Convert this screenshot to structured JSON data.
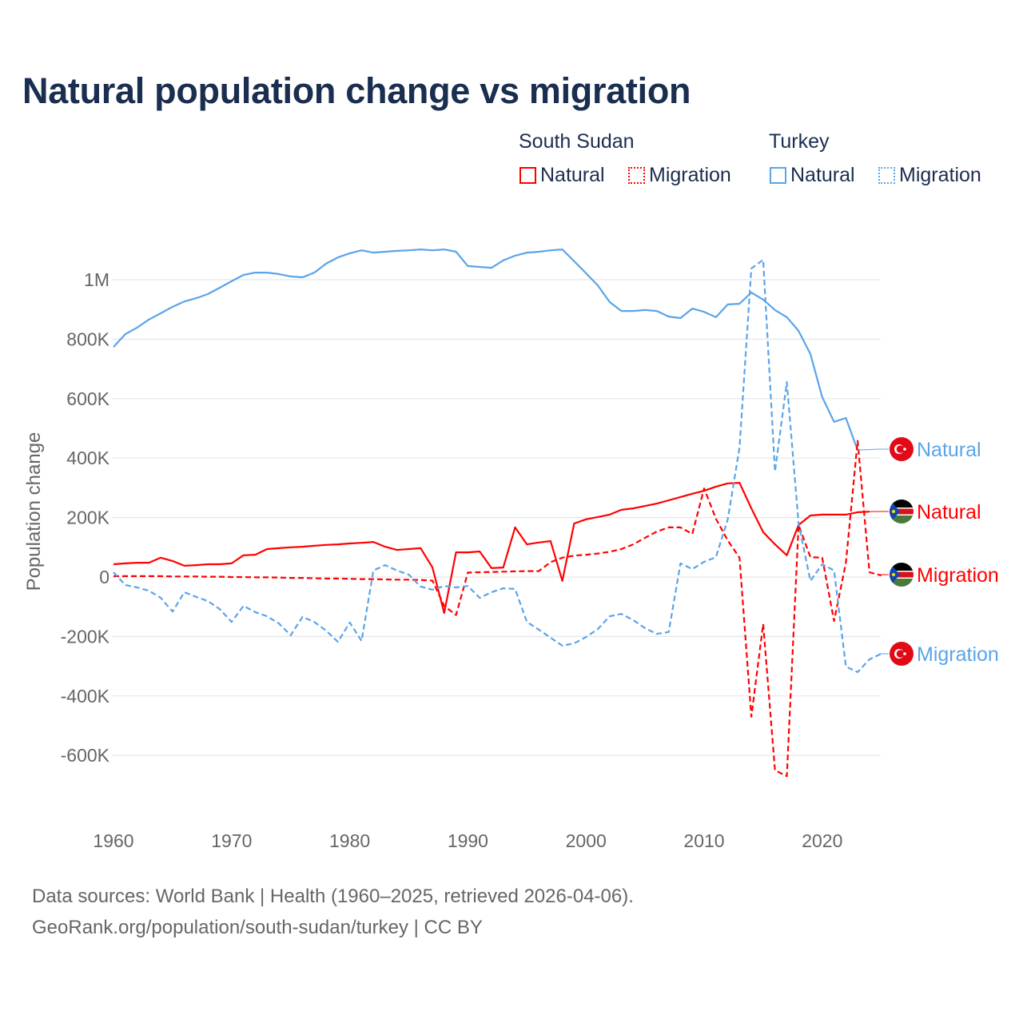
{
  "title": "Natural population change vs migration",
  "legend": {
    "groups": [
      {
        "name": "South Sudan",
        "items": [
          {
            "label": "Natural",
            "style": "solid"
          },
          {
            "label": "Migration",
            "style": "dotted"
          }
        ]
      },
      {
        "name": "Turkey",
        "items": [
          {
            "label": "Natural",
            "style": "solid"
          },
          {
            "label": "Migration",
            "style": "dotted"
          }
        ]
      }
    ]
  },
  "footer": {
    "line1": "Data sources: World Bank | Health (1960–2025, retrieved 2026-04-06).",
    "line2": "GeoRank.org/population/south-sudan/turkey | CC BY"
  },
  "colors": {
    "south_sudan": "#ff0000",
    "turkey": "#5ba4e8",
    "grid": "#e6e6e6",
    "tick": "#666666"
  },
  "chart_data": {
    "type": "line",
    "title": "Natural population change vs migration",
    "xlabel": "",
    "ylabel": "Population change",
    "xlim": [
      1960,
      2025
    ],
    "ylim": [
      -700000,
      1150000
    ],
    "xticks": [
      1960,
      1970,
      1980,
      1990,
      2000,
      2010,
      2020
    ],
    "xtick_labels": [
      "1960",
      "1970",
      "1980",
      "1990",
      "2000",
      "2010",
      "2020"
    ],
    "yticks": [
      -600000,
      -400000,
      -200000,
      0,
      200000,
      400000,
      600000,
      800000,
      1000000
    ],
    "ytick_labels": [
      "-600K",
      "-400K",
      "-200K",
      "0",
      "200K",
      "400K",
      "600K",
      "800K",
      "1M"
    ],
    "grid": true,
    "legend_position": "top-right",
    "series": [
      {
        "name": "Turkey Natural",
        "country": "Turkey",
        "label": "Natural",
        "color": "#5ba4e8",
        "dash": false,
        "flag": "turkey",
        "start": 1960,
        "values": [
          774,
          817,
          839,
          866,
          887,
          909,
          927,
          938,
          952,
          973,
          995,
          1016,
          1024,
          1024,
          1019,
          1011,
          1008,
          1024,
          1054,
          1075,
          1089,
          1099,
          1091,
          1094,
          1097,
          1099,
          1102,
          1099,
          1102,
          1094,
          1046,
          1043,
          1040,
          1065,
          1081,
          1091,
          1094,
          1099,
          1102,
          1062,
          1022,
          981,
          925,
          895,
          895,
          898,
          895,
          876,
          871,
          903,
          892,
          874,
          917,
          919,
          957,
          933,
          898,
          874,
          828,
          750,
          605,
          522,
          535,
          427
        ]
      },
      {
        "name": "South Sudan Natural",
        "country": "South Sudan",
        "label": "Natural",
        "color": "#ff0000",
        "dash": false,
        "flag": "south-sudan",
        "start": 1960,
        "values": [
          43,
          46,
          48,
          48,
          65,
          54,
          38,
          40,
          43,
          43,
          46,
          73,
          75,
          94,
          97,
          100,
          102,
          105,
          108,
          110,
          113,
          115,
          118,
          102,
          91,
          94,
          97,
          32,
          -121,
          83,
          83,
          86,
          30,
          32,
          167,
          110,
          116,
          121,
          -13,
          180,
          194,
          202,
          210,
          226,
          231,
          239,
          247,
          258,
          269,
          280,
          290,
          304,
          315,
          317,
          231,
          151,
          110,
          73,
          175,
          207,
          210,
          210,
          210,
          218,
          220
        ]
      },
      {
        "name": "South Sudan Migration",
        "country": "South Sudan",
        "label": "Migration",
        "color": "#ff0000",
        "dash": true,
        "flag": "south-sudan",
        "start": 1960,
        "values": [
          3,
          3,
          3,
          3,
          3,
          2,
          2,
          2,
          1,
          1,
          0,
          0,
          -1,
          -1,
          -2,
          -3,
          -3,
          -4,
          -5,
          -5,
          -6,
          -7,
          -7,
          -8,
          -9,
          -9,
          -10,
          -12,
          -97,
          -128,
          15,
          16,
          17,
          18,
          19,
          20,
          20,
          50,
          65,
          72,
          75,
          79,
          85,
          94,
          110,
          132,
          153,
          167,
          167,
          145,
          298,
          196,
          123,
          65,
          -470,
          -158,
          -650,
          -670,
          175,
          67,
          65,
          -148,
          48,
          458,
          16,
          5
        ]
      },
      {
        "name": "Turkey Migration",
        "country": "Turkey",
        "label": "Migration",
        "color": "#5ba4e8",
        "dash": true,
        "flag": "turkey",
        "start": 1960,
        "values": [
          16,
          -27,
          -35,
          -46,
          -70,
          -116,
          -51,
          -67,
          -81,
          -108,
          -151,
          -97,
          -118,
          -132,
          -156,
          -196,
          -134,
          -151,
          -180,
          -218,
          -153,
          -215,
          22,
          40,
          22,
          8,
          -32,
          -43,
          -30,
          -35,
          -30,
          -70,
          -51,
          -38,
          -40,
          -151,
          -177,
          -204,
          -231,
          -223,
          -202,
          -175,
          -132,
          -124,
          -145,
          -172,
          -191,
          -185,
          46,
          27,
          51,
          67,
          194,
          435,
          1038,
          1067,
          355,
          656,
          180,
          -13,
          43,
          22,
          -301,
          -320,
          -277,
          -258
        ]
      }
    ],
    "value_unit": "thousands"
  }
}
